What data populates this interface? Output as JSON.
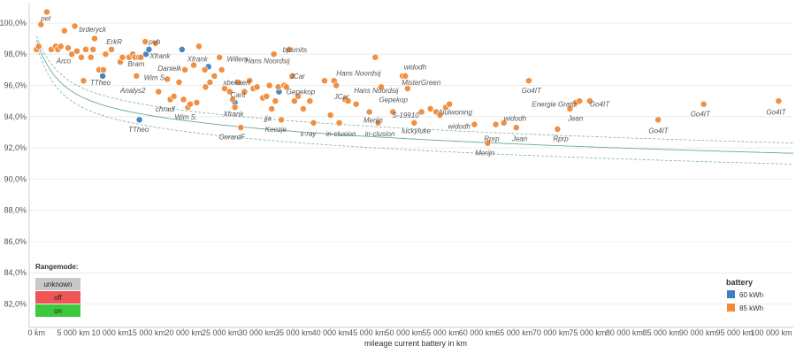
{
  "chart_data": {
    "type": "scatter",
    "xlabel": "mileage current battery in km",
    "ylabel": "",
    "xlim": [
      -1000,
      103000
    ],
    "ylim": [
      80.5,
      101.3
    ],
    "x_ticks": [
      0,
      5000,
      10000,
      15000,
      20000,
      25000,
      30000,
      35000,
      40000,
      45000,
      50000,
      55000,
      60000,
      65000,
      70000,
      75000,
      80000,
      85000,
      90000,
      95000,
      100000
    ],
    "x_tick_labels": [
      "0 km",
      "5 000 km",
      "10 000 km",
      "15 000 km",
      "20 000 km",
      "25 000 km",
      "30 000 km",
      "35 000 km",
      "40 000 km",
      "45 000 km",
      "50 000 km",
      "55 000 km",
      "60 000 km",
      "65 000 km",
      "70 000 km",
      "75 000 km",
      "80 000 km",
      "85 000 km",
      "90 000 km",
      "95 000 km",
      "100 000 km"
    ],
    "y_ticks": [
      82,
      84,
      86,
      88,
      90,
      92,
      94,
      96,
      98,
      100
    ],
    "y_tick_labels": [
      "82,0%",
      "84,0%",
      "86,0%",
      "88,0%",
      "90,0%",
      "92,0%",
      "94,0%",
      "96,0%",
      "98,0%",
      "100,0%"
    ],
    "grid": "horizontal",
    "legend_position": "bottom-right",
    "series": [
      {
        "name": "60 kWh",
        "color": "#3d7fc0",
        "points": [
          [
            9000,
            96.6
          ],
          [
            14000,
            93.8
          ],
          [
            14900,
            98.0
          ],
          [
            15300,
            98.3
          ],
          [
            19800,
            98.3
          ],
          [
            23400,
            97.2
          ],
          [
            27000,
            94.9
          ],
          [
            33000,
            95.6
          ]
        ]
      },
      {
        "name": "85 kWh",
        "color": "#ef8b3a",
        "points": [
          [
            0,
            98.3
          ],
          [
            300,
            98.5
          ],
          [
            600,
            99.9
          ],
          [
            1400,
            100.7
          ],
          [
            2000,
            98.3
          ],
          [
            2600,
            98.5
          ],
          [
            2900,
            98.3
          ],
          [
            3300,
            98.5
          ],
          [
            3800,
            99.5
          ],
          [
            4300,
            98.4
          ],
          [
            4800,
            98.0
          ],
          [
            5200,
            99.8
          ],
          [
            5500,
            98.2
          ],
          [
            6100,
            97.8
          ],
          [
            6400,
            96.3
          ],
          [
            6700,
            98.3
          ],
          [
            7400,
            97.8
          ],
          [
            7700,
            98.3
          ],
          [
            7900,
            99.0
          ],
          [
            8500,
            97.0
          ],
          [
            9100,
            97.0
          ],
          [
            9400,
            98.0
          ],
          [
            10200,
            98.3
          ],
          [
            11400,
            97.5
          ],
          [
            11700,
            97.8
          ],
          [
            12600,
            97.8
          ],
          [
            13100,
            98.0
          ],
          [
            13400,
            97.8
          ],
          [
            13600,
            96.6
          ],
          [
            13900,
            97.8
          ],
          [
            14200,
            97.8
          ],
          [
            14800,
            98.8
          ],
          [
            16200,
            98.7
          ],
          [
            16600,
            95.6
          ],
          [
            17800,
            96.4
          ],
          [
            18200,
            95.1
          ],
          [
            18700,
            95.3
          ],
          [
            19400,
            96.2
          ],
          [
            20000,
            95.1
          ],
          [
            20200,
            97.0
          ],
          [
            20600,
            94.6
          ],
          [
            20900,
            94.8
          ],
          [
            21400,
            97.3
          ],
          [
            21800,
            94.9
          ],
          [
            22100,
            98.5
          ],
          [
            22900,
            97.0
          ],
          [
            23000,
            95.9
          ],
          [
            23600,
            96.2
          ],
          [
            24200,
            96.6
          ],
          [
            24900,
            97.8
          ],
          [
            25200,
            97.0
          ],
          [
            25600,
            95.8
          ],
          [
            26300,
            95.6
          ],
          [
            26700,
            95.1
          ],
          [
            27000,
            94.6
          ],
          [
            27400,
            96.2
          ],
          [
            27800,
            93.3
          ],
          [
            28300,
            95.6
          ],
          [
            29000,
            96.3
          ],
          [
            29500,
            95.8
          ],
          [
            30000,
            95.9
          ],
          [
            30800,
            95.2
          ],
          [
            31300,
            95.3
          ],
          [
            31700,
            96.0
          ],
          [
            32000,
            94.5
          ],
          [
            32300,
            98.0
          ],
          [
            32500,
            95.0
          ],
          [
            32900,
            95.9
          ],
          [
            33300,
            93.8
          ],
          [
            33700,
            96.0
          ],
          [
            34000,
            95.9
          ],
          [
            34400,
            98.3
          ],
          [
            34800,
            96.6
          ],
          [
            35100,
            95.0
          ],
          [
            35600,
            95.3
          ],
          [
            36300,
            94.5
          ],
          [
            37200,
            95.0
          ],
          [
            37700,
            93.6
          ],
          [
            39200,
            96.3
          ],
          [
            40000,
            94.1
          ],
          [
            40500,
            96.3
          ],
          [
            40800,
            96.0
          ],
          [
            41200,
            93.6
          ],
          [
            42000,
            95.1
          ],
          [
            42400,
            95.0
          ],
          [
            43500,
            94.8
          ],
          [
            45300,
            94.3
          ],
          [
            46100,
            97.8
          ],
          [
            46500,
            93.6
          ],
          [
            46900,
            95.9
          ],
          [
            48500,
            94.3
          ],
          [
            49800,
            96.6
          ],
          [
            50200,
            96.6
          ],
          [
            50500,
            95.8
          ],
          [
            51400,
            93.6
          ],
          [
            52400,
            94.3
          ],
          [
            53600,
            94.5
          ],
          [
            54400,
            94.3
          ],
          [
            54900,
            94.1
          ],
          [
            55700,
            94.6
          ],
          [
            56200,
            94.8
          ],
          [
            59600,
            93.5
          ],
          [
            61400,
            92.3
          ],
          [
            62500,
            93.5
          ],
          [
            63600,
            93.6
          ],
          [
            65300,
            93.3
          ],
          [
            67000,
            96.3
          ],
          [
            70900,
            93.2
          ],
          [
            72600,
            94.5
          ],
          [
            73400,
            94.9
          ],
          [
            73900,
            95.0
          ],
          [
            75300,
            95.0
          ],
          [
            84600,
            93.8
          ],
          [
            90800,
            94.8
          ],
          [
            101000,
            95.0
          ]
        ]
      }
    ],
    "labels": [
      {
        "text": "pet",
        "x": 600,
        "y": 100.3
      },
      {
        "text": "brderyck",
        "x": 5800,
        "y": 99.6
      },
      {
        "text": "ErkR",
        "x": 9500,
        "y": 98.8
      },
      {
        "text": "pvh",
        "x": 15300,
        "y": 98.8
      },
      {
        "text": "Xfrank",
        "x": 15400,
        "y": 97.9
      },
      {
        "text": "Arco",
        "x": 2700,
        "y": 97.6
      },
      {
        "text": "Bram",
        "x": 12400,
        "y": 97.4
      },
      {
        "text": "Xfrank",
        "x": 20500,
        "y": 97.7
      },
      {
        "text": "Willem",
        "x": 25900,
        "y": 97.7
      },
      {
        "text": "bpsmits",
        "x": 33500,
        "y": 98.3
      },
      {
        "text": "Hans Noordsij",
        "x": 28400,
        "y": 97.6
      },
      {
        "text": "Danielk",
        "x": 16500,
        "y": 97.1
      },
      {
        "text": "TTheo",
        "x": 7300,
        "y": 96.2
      },
      {
        "text": "Wim S.",
        "x": 14600,
        "y": 96.5
      },
      {
        "text": "xbekaert",
        "x": 25400,
        "y": 96.2
      },
      {
        "text": "JCar",
        "x": 34500,
        "y": 96.6
      },
      {
        "text": "Hans Noordsij",
        "x": 40800,
        "y": 96.8
      },
      {
        "text": "widodh",
        "x": 50000,
        "y": 97.2
      },
      {
        "text": "MisterGreen",
        "x": 49700,
        "y": 96.2
      },
      {
        "text": "Analys2",
        "x": 11400,
        "y": 95.7
      },
      {
        "text": "Carit",
        "x": 26400,
        "y": 95.4
      },
      {
        "text": "Gepekop",
        "x": 34000,
        "y": 95.6
      },
      {
        "text": "JCar",
        "x": 40500,
        "y": 95.3
      },
      {
        "text": "Hans Noordsij",
        "x": 43200,
        "y": 95.7
      },
      {
        "text": "Gepekop",
        "x": 46600,
        "y": 95.1
      },
      {
        "text": "Go4IT",
        "x": 66000,
        "y": 95.7
      },
      {
        "text": "Energie Gratiz",
        "x": 67400,
        "y": 94.8
      },
      {
        "text": "Go4IT",
        "x": 75300,
        "y": 94.8
      },
      {
        "text": "Go4IT",
        "x": 99300,
        "y": 94.3
      },
      {
        "text": "chradl",
        "x": 16200,
        "y": 94.5
      },
      {
        "text": "Wim S.",
        "x": 18800,
        "y": 94.0
      },
      {
        "text": "Xfrank",
        "x": 25400,
        "y": 94.2
      },
      {
        "text": "jja",
        "x": 31000,
        "y": 93.9
      },
      {
        "text": "S-19910",
        "x": 48400,
        "y": 94.1
      },
      {
        "text": "Nulwoning",
        "x": 54800,
        "y": 94.3
      },
      {
        "text": "Merijn",
        "x": 44500,
        "y": 93.8
      },
      {
        "text": "widodh",
        "x": 63600,
        "y": 93.9
      },
      {
        "text": "Jean",
        "x": 72300,
        "y": 93.9
      },
      {
        "text": "Go4IT",
        "x": 89000,
        "y": 94.2
      },
      {
        "text": "TTheo",
        "x": 12500,
        "y": 93.2
      },
      {
        "text": "widodh",
        "x": 56000,
        "y": 93.4
      },
      {
        "text": "Keezje",
        "x": 31100,
        "y": 93.2
      },
      {
        "text": "GerardF",
        "x": 24800,
        "y": 92.7
      },
      {
        "text": "x-ray",
        "x": 35900,
        "y": 92.9
      },
      {
        "text": "in-clusion",
        "x": 39400,
        "y": 92.9
      },
      {
        "text": "in-clusion",
        "x": 44700,
        "y": 92.9
      },
      {
        "text": "luckyluke",
        "x": 49700,
        "y": 93.1
      },
      {
        "text": "Rprp",
        "x": 60900,
        "y": 92.6
      },
      {
        "text": "Jean",
        "x": 64700,
        "y": 92.6
      },
      {
        "text": "Rprp",
        "x": 70300,
        "y": 92.6
      },
      {
        "text": "Go4IT",
        "x": 83300,
        "y": 93.1
      },
      {
        "text": "Merijn",
        "x": 59700,
        "y": 91.7
      }
    ]
  },
  "rangemode": {
    "title": "Rangemode:",
    "items": [
      {
        "label": "unknown",
        "color": "#c8c8c8"
      },
      {
        "label": "off",
        "color": "#f05555"
      },
      {
        "label": "on",
        "color": "#3ec83e"
      }
    ]
  },
  "legend": {
    "title": "battery",
    "items": [
      {
        "label": "60 kWh",
        "color": "#3d7fc0"
      },
      {
        "label": "85 kWh",
        "color": "#ef8b3a"
      }
    ]
  }
}
